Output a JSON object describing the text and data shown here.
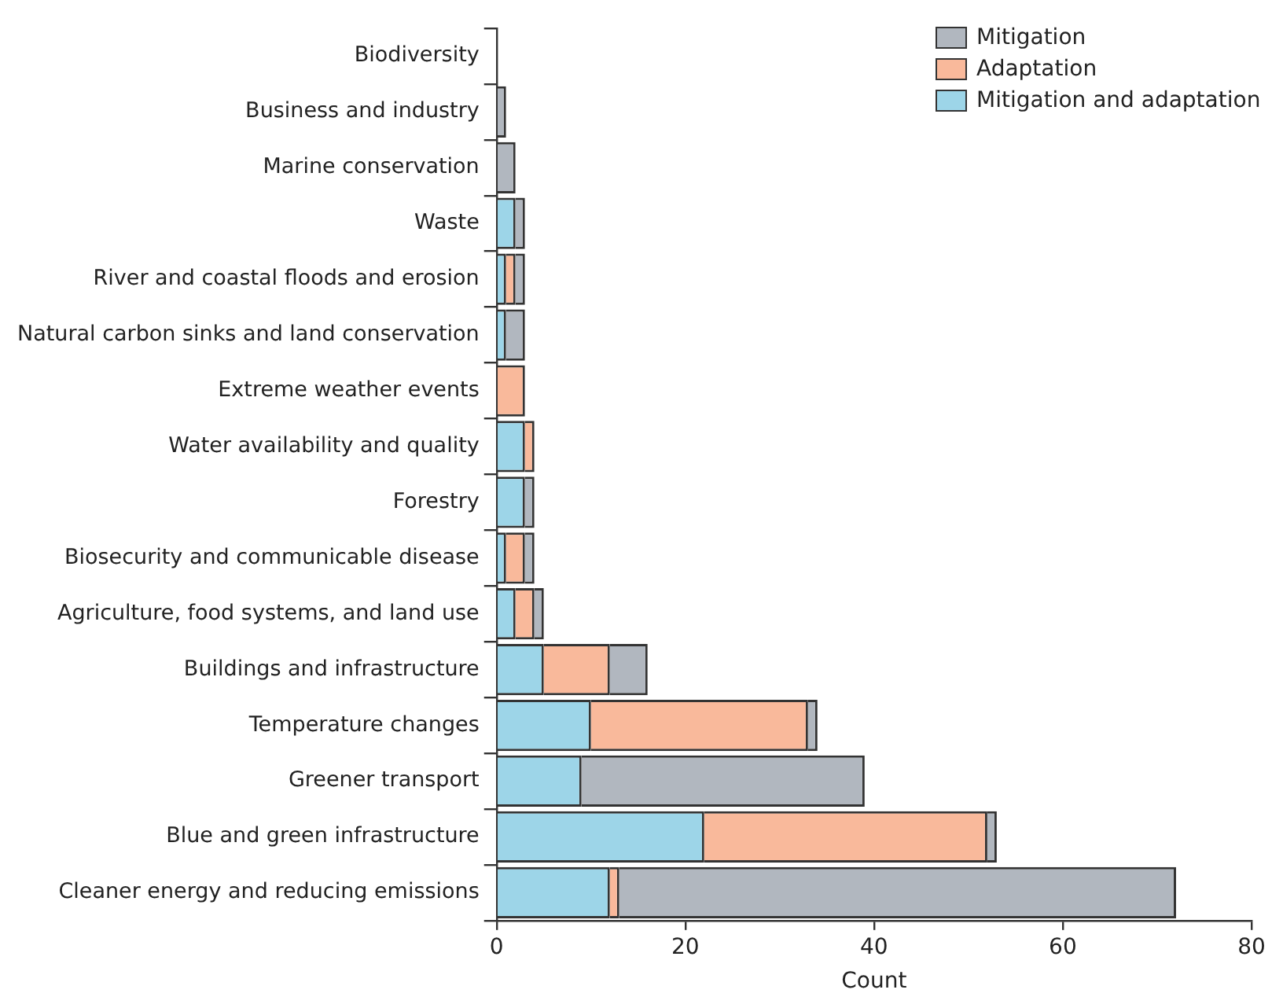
{
  "chart_data": {
    "type": "bar",
    "orientation": "horizontal",
    "stacked": true,
    "xlabel": "Count",
    "categories": [
      "Biodiversity",
      "Business and industry",
      "Marine conservation",
      "Waste",
      "River and coastal floods and erosion",
      "Natural carbon sinks and land conservation",
      "Extreme weather events",
      "Water availability and quality",
      "Forestry",
      "Biosecurity and communicable disease",
      "Agriculture, food systems, and land use",
      "Buildings and infrastructure",
      "Temperature changes",
      "Greener transport",
      "Blue and green infrastructure",
      "Cleaner energy and reducing emissions"
    ],
    "series": [
      {
        "name": "Mitigation and adaptation",
        "color": "#9dd5e8",
        "values": [
          0,
          0,
          0,
          2,
          1,
          1,
          0,
          3,
          3,
          1,
          2,
          5,
          10,
          9,
          22,
          12
        ]
      },
      {
        "name": "Adaptation",
        "color": "#f9b99b",
        "values": [
          0,
          0,
          0,
          0,
          1,
          0,
          3,
          1,
          0,
          2,
          2,
          7,
          23,
          0,
          30,
          1
        ]
      },
      {
        "name": "Mitigation",
        "color": "#b1b7bf",
        "values": [
          0,
          1,
          2,
          1,
          1,
          2,
          0,
          0,
          1,
          1,
          1,
          4,
          1,
          30,
          1,
          59
        ]
      }
    ],
    "xlim": [
      0,
      80
    ],
    "xticks": [
      0,
      20,
      40,
      60,
      80
    ],
    "grid": false,
    "legend": "top right"
  }
}
